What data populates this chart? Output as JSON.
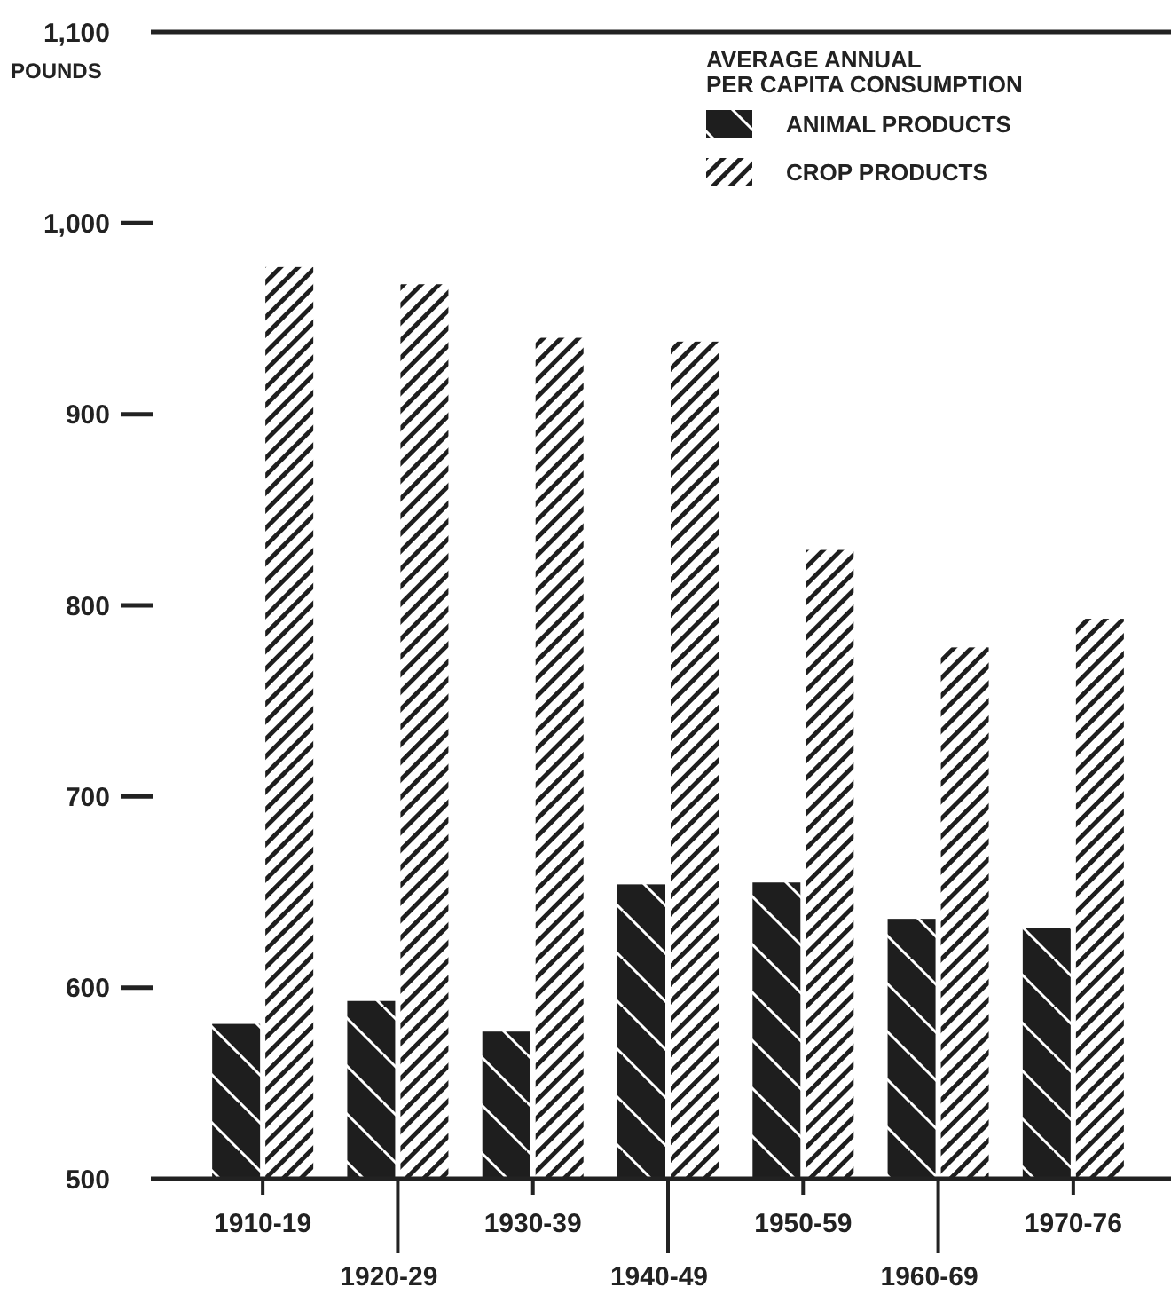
{
  "chart_data": {
    "type": "bar",
    "ylabel": "POUNDS",
    "legend_title": "AVERAGE ANNUAL PER CAPITA CONSUMPTION",
    "legend": "top right",
    "categories": [
      "1910-19",
      "1920-29",
      "1930-39",
      "1940-49",
      "1950-59",
      "1960-69",
      "1970-76"
    ],
    "series": [
      {
        "name": "ANIMAL PRODUCTS",
        "color": "#1e1e1e",
        "values": [
          581,
          593,
          577,
          654,
          655,
          636,
          631
        ]
      },
      {
        "name": "CROP PRODUCTS",
        "color": "#1e1e1e",
        "values": [
          977,
          968,
          940,
          938,
          829,
          778,
          793
        ]
      }
    ],
    "ylim": [
      500,
      1100
    ],
    "yticks": [
      500,
      600,
      700,
      800,
      900,
      {
        "value": 1000,
        "label": "1,000"
      },
      {
        "value": 1100,
        "label": "1,100"
      }
    ]
  }
}
